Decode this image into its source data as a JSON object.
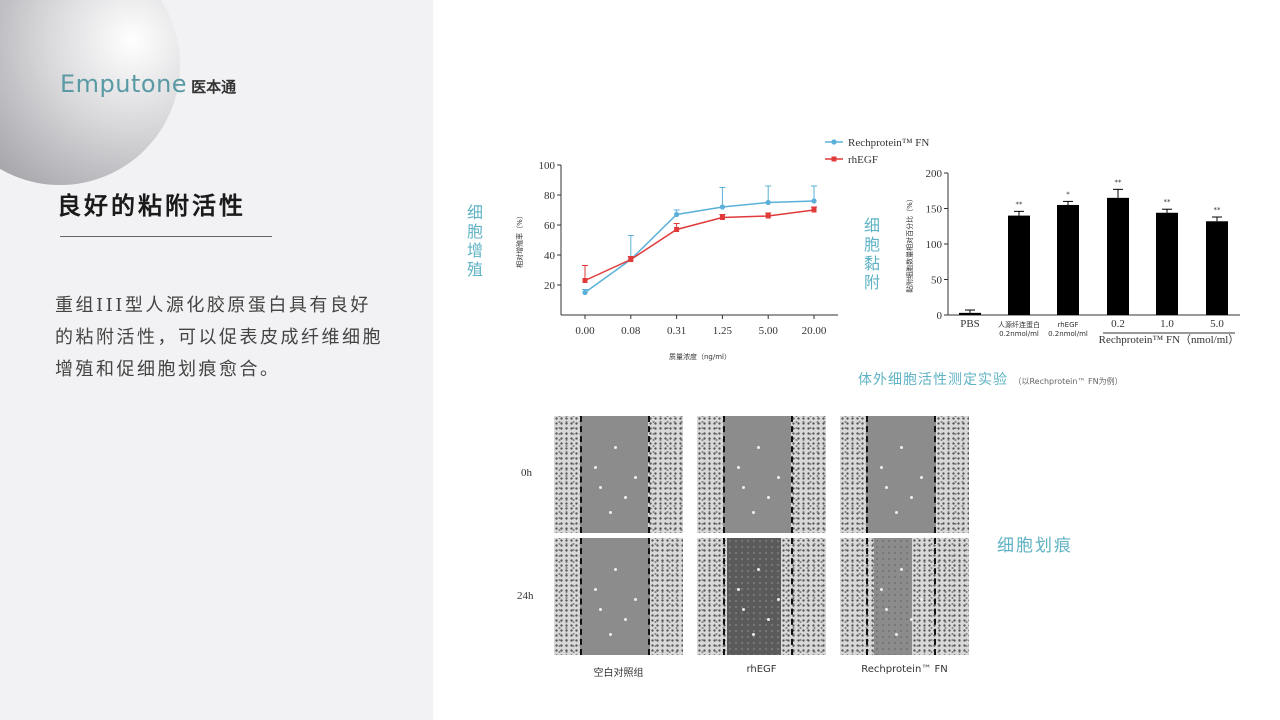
{
  "brand": {
    "logo_en": "Emputone",
    "logo_cn": "医本通"
  },
  "title": "良好的粘附活性",
  "description": "重组III型人源化胶原蛋白具有良好的粘附活性，可以促表皮成纤维细胞增殖和促细胞划痕愈合。",
  "labels": {
    "proliferation": [
      "细",
      "胞",
      "增",
      "殖"
    ],
    "adhesion": [
      "细",
      "胞",
      "黏",
      "附"
    ],
    "assay_caption": "体外细胞活性测定实验",
    "assay_note": "（以Rechprotein™ FN为例）",
    "scratch": "细胞划痕"
  },
  "chart_data": [
    {
      "type": "line",
      "xlabel": "质量浓度（ng/ml）",
      "ylabel": "相对增殖率（%）",
      "categories": [
        "0.00",
        "0.08",
        "0.31",
        "1.25",
        "5.00",
        "20.00"
      ],
      "ylim": [
        0,
        100
      ],
      "yticks": [
        "20",
        "40",
        "60",
        "80",
        "100"
      ],
      "legend_position": "top-right",
      "series": [
        {
          "name": "Rechprotein™ FN",
          "color": "#5ab0d8",
          "values": [
            15,
            37,
            67,
            72,
            75,
            76
          ],
          "errors": [
            2,
            16,
            3,
            13,
            11,
            10
          ]
        },
        {
          "name": "rhEGF",
          "color": "#e03a3a",
          "values": [
            23,
            37,
            57,
            65,
            66,
            70
          ],
          "errors": [
            10,
            2,
            4,
            2,
            2,
            2
          ]
        }
      ]
    },
    {
      "type": "bar",
      "ylabel": "黏附细胞数量相对百分比（%）",
      "categories": [
        "PBS",
        "人源纤连蛋白\n0.2nmol/ml",
        "rhEGF\n0.2nmol/ml",
        "0.2",
        "1.0",
        "5.0"
      ],
      "group_label": "Rechprotein™ FN（nmol/ml）",
      "ylim": [
        0,
        200
      ],
      "yticks": [
        "0",
        "50",
        "100",
        "150",
        "200"
      ],
      "values": [
        3,
        140,
        155,
        165,
        144,
        132
      ],
      "errors": [
        4,
        6,
        5,
        12,
        5,
        6
      ],
      "significance": [
        "",
        "**",
        "*",
        "**",
        "**",
        "**"
      ],
      "bar_color": "#000000"
    }
  ],
  "micrographs": {
    "rows": [
      "0h",
      "24h"
    ],
    "columns": [
      "空白对照组",
      "rhEGF",
      "Rechprotein™ FN"
    ]
  }
}
